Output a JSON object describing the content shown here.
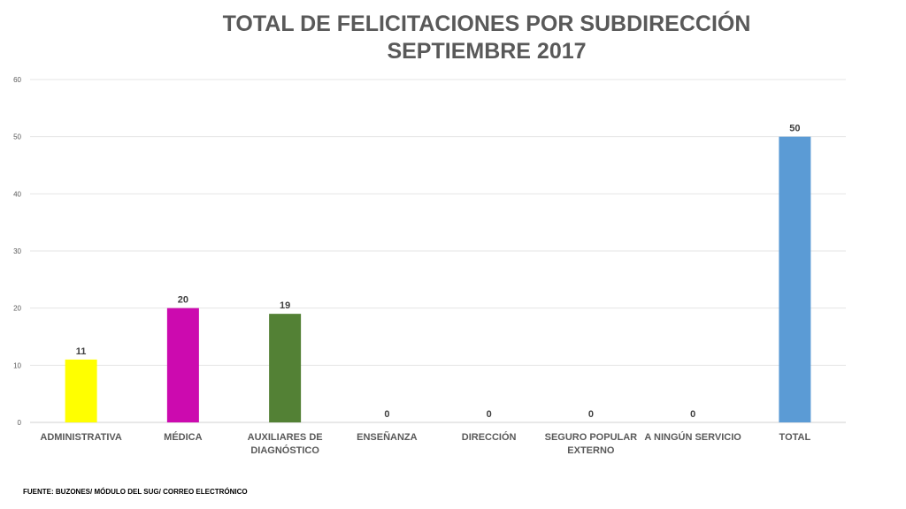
{
  "title_line1": "TOTAL DE FELICITACIONES POR SUBDIRECCIÓN",
  "title_line2": "SEPTIEMBRE 2017",
  "source": "FUENTE: BUZONES/ MÓDULO DEL SUG/ CORREO ELECTRÓNICO",
  "chart_data": {
    "type": "bar",
    "title": "TOTAL DE FELICITACIONES POR SUBDIRECCIÓN SEPTIEMBRE 2017",
    "xlabel": "",
    "ylabel": "",
    "ylim": [
      0,
      60
    ],
    "yticks": [
      0,
      10,
      20,
      30,
      40,
      50,
      60
    ],
    "grid": true,
    "legend": "none",
    "categories": [
      [
        "ADMINISTRATIVA"
      ],
      [
        "MÉDICA"
      ],
      [
        "AUXILIARES DE",
        "DIAGNÓSTICO"
      ],
      [
        "ENSEÑANZA"
      ],
      [
        "DIRECCIÓN"
      ],
      [
        "SEGURO POPULAR",
        "EXTERNO"
      ],
      [
        "A NINGÚN SERVICIO"
      ],
      [
        "TOTAL"
      ]
    ],
    "values": [
      11,
      20,
      19,
      0,
      0,
      0,
      0,
      50
    ],
    "colors": [
      "#ffff00",
      "#cc0aaf",
      "#538135",
      "#5b9bd5",
      "#5b9bd5",
      "#5b9bd5",
      "#5b9bd5",
      "#5b9bd5"
    ]
  }
}
